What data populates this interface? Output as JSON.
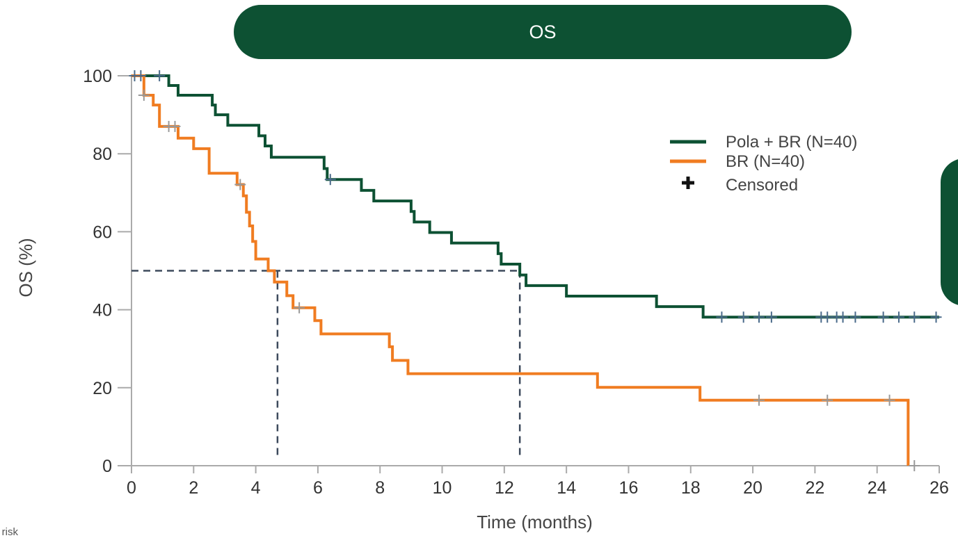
{
  "header": {
    "title": "OS"
  },
  "footer": {
    "note": "at risk"
  },
  "chart_data": {
    "type": "line",
    "subtype": "kaplan-meier step",
    "title": "OS",
    "xlabel": "Time (months)",
    "ylabel": "OS (%)",
    "xlim": [
      0,
      26
    ],
    "ylim": [
      0,
      100
    ],
    "xticks": [
      0,
      2,
      4,
      6,
      8,
      10,
      12,
      14,
      16,
      18,
      20,
      22,
      24,
      26
    ],
    "yticks": [
      0,
      20,
      40,
      60,
      80,
      100
    ],
    "grid": false,
    "legend_position": "top-right",
    "legend": [
      {
        "label": "Pola + BR (N=40)",
        "color": "#0d5133",
        "kind": "line"
      },
      {
        "label": "BR (N=40)",
        "color": "#f07c21",
        "kind": "line"
      },
      {
        "label": "Censored",
        "color": "#111111",
        "kind": "plus"
      }
    ],
    "median_lines": [
      {
        "series": "BR (N=40)",
        "x": 4.7,
        "y": 50
      },
      {
        "series": "Pola + BR (N=40)",
        "x": 12.5,
        "y": 50
      }
    ],
    "series": [
      {
        "name": "Pola + BR (N=40)",
        "color": "#0d5133",
        "steps": [
          [
            0,
            100
          ],
          [
            1.2,
            97.5
          ],
          [
            1.5,
            95
          ],
          [
            2.6,
            92.5
          ],
          [
            2.7,
            90
          ],
          [
            3.1,
            87.3
          ],
          [
            4.1,
            84.6
          ],
          [
            4.3,
            82
          ],
          [
            4.5,
            79.1
          ],
          [
            6.2,
            76.2
          ],
          [
            6.3,
            73.4
          ],
          [
            7.4,
            70.6
          ],
          [
            7.8,
            67.9
          ],
          [
            9.0,
            65.2
          ],
          [
            9.1,
            62.5
          ],
          [
            9.6,
            59.8
          ],
          [
            10.3,
            57.1
          ],
          [
            11.8,
            54.4
          ],
          [
            11.9,
            51.7
          ],
          [
            12.5,
            48.9
          ],
          [
            12.7,
            46.2
          ],
          [
            14.0,
            43.5
          ],
          [
            16.9,
            40.8
          ],
          [
            18.4,
            38.1
          ],
          [
            26.0,
            38.1
          ]
        ],
        "censored": [
          0.1,
          0.3,
          0.9,
          6.4,
          19.0,
          19.7,
          20.2,
          20.6,
          22.2,
          22.4,
          22.7,
          22.9,
          23.3,
          24.2,
          24.7,
          25.2,
          25.9
        ]
      },
      {
        "name": "BR (N=40)",
        "color": "#f07c21",
        "steps": [
          [
            0,
            100
          ],
          [
            0.4,
            95
          ],
          [
            0.7,
            92.5
          ],
          [
            0.9,
            87
          ],
          [
            1.5,
            84
          ],
          [
            2.0,
            81.3
          ],
          [
            2.5,
            75
          ],
          [
            3.4,
            72.1
          ],
          [
            3.6,
            69.2
          ],
          [
            3.7,
            65
          ],
          [
            3.8,
            61.5
          ],
          [
            3.9,
            57.5
          ],
          [
            4.0,
            53
          ],
          [
            4.4,
            50
          ],
          [
            4.6,
            47.1
          ],
          [
            5.0,
            43.6
          ],
          [
            5.2,
            40.5
          ],
          [
            5.9,
            37.2
          ],
          [
            6.1,
            33.8
          ],
          [
            8.3,
            30.5
          ],
          [
            8.4,
            27
          ],
          [
            8.9,
            23.6
          ],
          [
            15.0,
            20.1
          ],
          [
            18.3,
            16.8
          ],
          [
            25.0,
            16.8
          ],
          [
            25.0,
            0
          ]
        ],
        "censored": [
          0.4,
          1.2,
          1.4,
          3.5,
          5.4,
          20.2,
          22.4,
          24.4,
          25.2
        ]
      }
    ]
  }
}
